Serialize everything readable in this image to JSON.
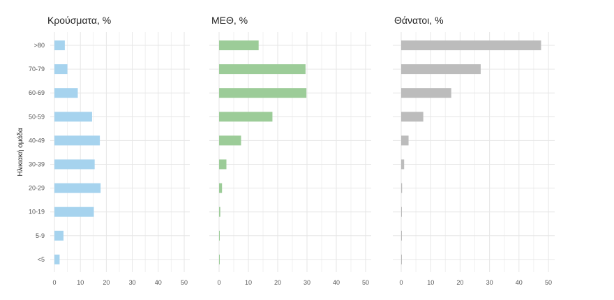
{
  "chart_data": [
    {
      "type": "bar",
      "orientation": "horizontal",
      "title": "Κρούσματα, %",
      "ylabel": "Ηλικιακή ομάδα",
      "categories": [
        ">80",
        "70-79",
        "60-69",
        "50-59",
        "40-49",
        "30-39",
        "20-29",
        "10-19",
        "5-9",
        "<5"
      ],
      "values": [
        4,
        5,
        9,
        14.5,
        17.5,
        15.5,
        17.8,
        15.2,
        3.5,
        2
      ],
      "xlim": [
        0,
        52
      ],
      "xticks": [
        0,
        10,
        20,
        30,
        40,
        50
      ],
      "color": "#a6d3ee",
      "grid": true
    },
    {
      "type": "bar",
      "orientation": "horizontal",
      "title": "ΜΕΘ, %",
      "categories": [
        ">80",
        "70-79",
        "60-69",
        "50-59",
        "40-49",
        "30-39",
        "20-29",
        "10-19",
        "5-9",
        "<5"
      ],
      "values": [
        13.5,
        29.5,
        29.8,
        18.2,
        7.5,
        2.5,
        1,
        0.4,
        0.2,
        0.2
      ],
      "xlim": [
        0,
        52
      ],
      "xticks": [
        0,
        10,
        20,
        30,
        40,
        50
      ],
      "color": "#9ccc98",
      "grid": true
    },
    {
      "type": "bar",
      "orientation": "horizontal",
      "title": "Θάνατοι, %",
      "categories": [
        ">80",
        "70-79",
        "60-69",
        "50-59",
        "40-49",
        "30-39",
        "20-29",
        "10-19",
        "5-9",
        "<5"
      ],
      "values": [
        47.5,
        27,
        17,
        7.5,
        2.5,
        1,
        0.3,
        0.2,
        0.1,
        0.1
      ],
      "xlim": [
        0,
        52
      ],
      "xticks": [
        0,
        10,
        20,
        30,
        40,
        50
      ],
      "color": "#bcbcbc",
      "grid": true
    }
  ]
}
